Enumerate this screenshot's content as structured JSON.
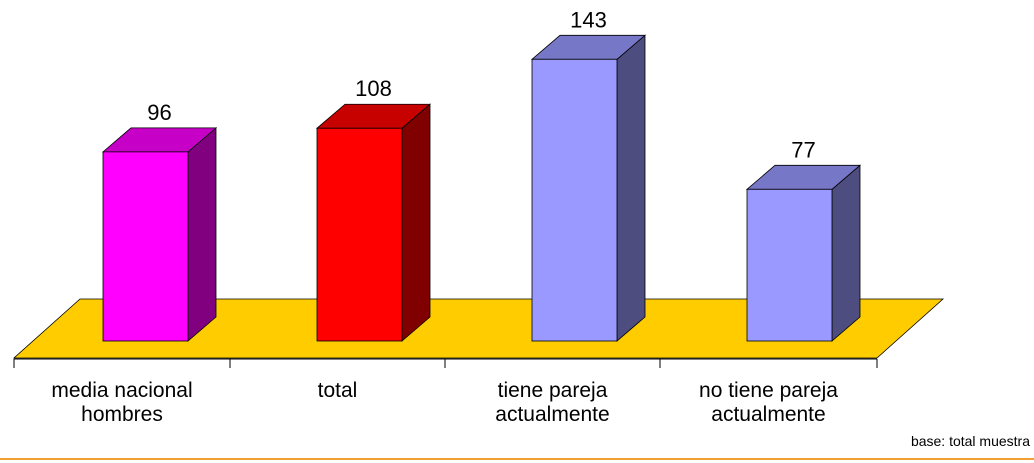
{
  "chart_data": {
    "type": "bar3d",
    "categories": [
      "media nacional hombres",
      "total",
      "tiene pareja actualmente",
      "no tiene pareja actualmente"
    ],
    "values": [
      96,
      108,
      143,
      77
    ],
    "colors": [
      "#ff00ff",
      "#ff0000",
      "#9999ff",
      "#9999ff"
    ],
    "floor_color": "#ffcc00",
    "footnote": "base: total muestra"
  }
}
